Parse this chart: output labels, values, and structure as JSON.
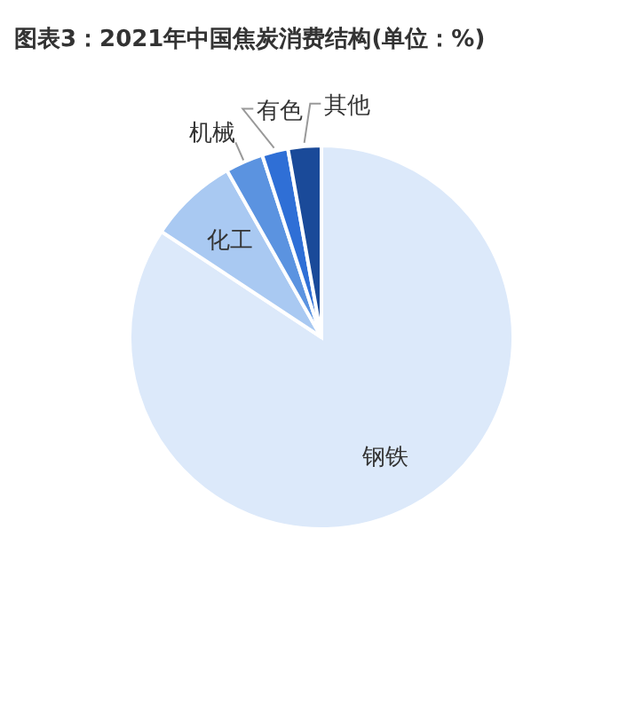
{
  "chart_data": {
    "type": "pie",
    "title": "图表3：2021年中国焦炭消费结构(单位：%)",
    "categories": [
      "钢铁",
      "化工",
      "机械",
      "有色",
      "其他"
    ],
    "values": [
      84.3,
      7.5,
      3.2,
      2.2,
      2.8
    ],
    "colors": [
      "#dce9fa",
      "#a9c9f2",
      "#5b93e0",
      "#2f6fd6",
      "#1a4a99"
    ]
  }
}
